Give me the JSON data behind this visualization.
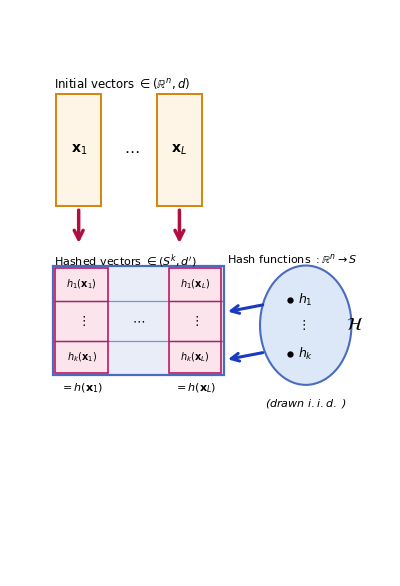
{
  "title_top": "Initial vectors $\\in (\\mathbb{R}^n, d)$",
  "title_bottom_left": "Hashed vectors $\\in (S^k, d^{\\prime})$",
  "title_bottom_right": "Hash functions $: \\mathbb{R}^n \\rightarrow S$",
  "box1_label": "$\\mathbf{x}_1$",
  "box2_label": "$\\mathbf{x}_L$",
  "dots_top": "$\\cdots$",
  "orange_fill": "#fff5e6",
  "orange_edge": "#d4840a",
  "pink_fill": "#fce4ec",
  "pink_edge": "#c2185b",
  "blue_fill": "#e8edf8",
  "blue_edge": "#4a6cc0",
  "ellipse_fill": "#dce8f8",
  "ellipse_edge": "#4a6cc0",
  "arrow_color": "#b01040",
  "blue_arrow_color": "#1a3bbf",
  "h1x1": "$h_1(\\mathbf{x}_1)$",
  "h1xL": "$h_1(\\mathbf{x}_L)$",
  "hkx1": "$h_k(\\mathbf{x}_1)$",
  "hkxL": "$h_k(\\mathbf{x}_L)$",
  "vdots": "$\\vdots$",
  "cdots": "$\\cdots$",
  "eq_hx1": "$= h(\\mathbf{x}_1)$",
  "eq_hxL": "$= h(\\mathbf{x}_L)$",
  "h1_label": "$h_1$",
  "hk_label": "$h_k$",
  "H_label": "$\\mathcal{H}$",
  "drawn_label": "(drawn $i.i.d.$ )"
}
